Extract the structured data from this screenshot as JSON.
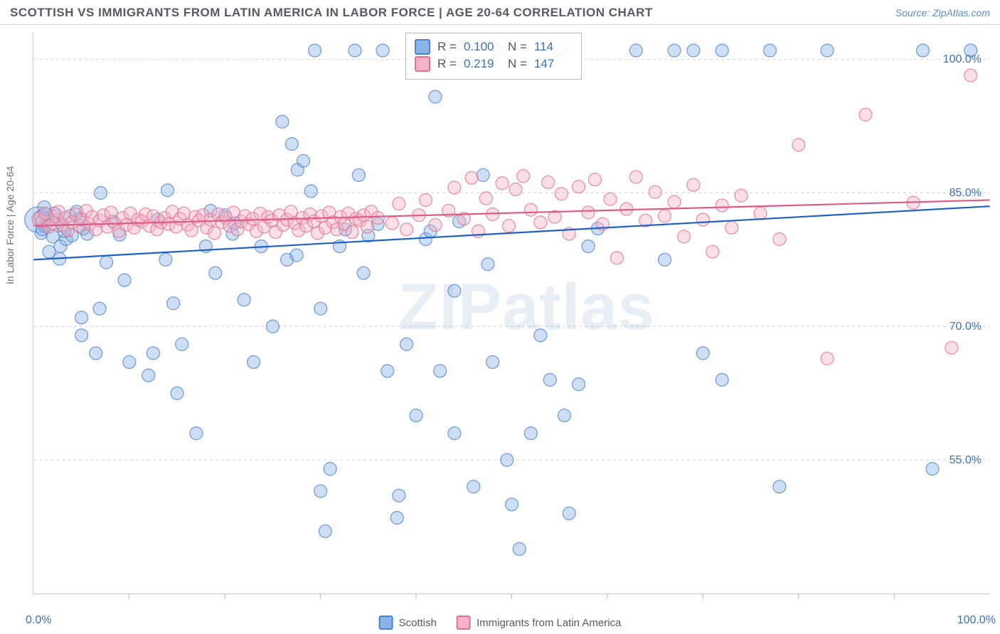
{
  "header": {
    "title": "SCOTTISH VS IMMIGRANTS FROM LATIN AMERICA IN LABOR FORCE | AGE 20-64 CORRELATION CHART",
    "source": "Source: ZipAtlas.com"
  },
  "watermark": "ZIPatlas",
  "chart": {
    "type": "scatter",
    "y_label": "In Labor Force | Age 20-64",
    "background_color": "#ffffff",
    "grid_color": "#d2d2d2",
    "axis_color": "#c9c9c9",
    "tick_color": "#b9b9b9",
    "label_color": "#3e72b6",
    "y_label_color": "#6b7079",
    "xlim": [
      0,
      100
    ],
    "ylim": [
      40,
      103
    ],
    "x_tick_positions": [
      10,
      20,
      30,
      40,
      50,
      60,
      70,
      80,
      90
    ],
    "x_min_label": "0.0%",
    "x_max_label": "100.0%",
    "y_ticks": [
      {
        "v": 55,
        "label": "55.0%"
      },
      {
        "v": 70,
        "label": "70.0%"
      },
      {
        "v": 85,
        "label": "85.0%"
      },
      {
        "v": 100,
        "label": "100.0%"
      }
    ],
    "marker_radius": 9,
    "marker_opacity": 0.42,
    "marker_stroke_opacity": 0.75,
    "trendline_width": 2.2,
    "series": [
      {
        "key": "scottish",
        "name": "Scottish",
        "fill": "#8ab3e6",
        "stroke": "#4c84c9",
        "trend_stroke": "#1f62c6",
        "R": "0.100",
        "N": "114",
        "trendline": {
          "x1": 0,
          "y1": 77.5,
          "x2": 100,
          "y2": 83.5
        },
        "points": [
          [
            0.4,
            82,
            18
          ],
          [
            0.7,
            82.3
          ],
          [
            1.2,
            81.2
          ],
          [
            0.8,
            80.5
          ],
          [
            1.5,
            81.8
          ],
          [
            1.3,
            82.6
          ],
          [
            2,
            80.1
          ],
          [
            2.5,
            82
          ],
          [
            2.8,
            79
          ],
          [
            1.6,
            78.4
          ],
          [
            2.2,
            82.7
          ],
          [
            3,
            81.3
          ],
          [
            3.4,
            79.8
          ],
          [
            3.8,
            82.4
          ],
          [
            4,
            80.2
          ],
          [
            4.5,
            82.9
          ],
          [
            0.9,
            80.9
          ],
          [
            1.1,
            83.4
          ],
          [
            2.7,
            77.6
          ],
          [
            3.2,
            80.7
          ],
          [
            4.8,
            82.1
          ],
          [
            5.2,
            81
          ],
          [
            5.6,
            80.4
          ],
          [
            7,
            85
          ],
          [
            5,
            69
          ],
          [
            5,
            71
          ],
          [
            6.5,
            67
          ],
          [
            6.9,
            72
          ],
          [
            7.6,
            77.2
          ],
          [
            8.3,
            81.8
          ],
          [
            9,
            80.3
          ],
          [
            9.5,
            75.2
          ],
          [
            10,
            66
          ],
          [
            12,
            64.5
          ],
          [
            12.5,
            67
          ],
          [
            13,
            82
          ],
          [
            13.8,
            77.5
          ],
          [
            14,
            85.3
          ],
          [
            14.6,
            72.6
          ],
          [
            15,
            62.5
          ],
          [
            15.5,
            68
          ],
          [
            17,
            58
          ],
          [
            18,
            79
          ],
          [
            18.5,
            83
          ],
          [
            19,
            76
          ],
          [
            20,
            82.5
          ],
          [
            20.8,
            80.4
          ],
          [
            21,
            81.6
          ],
          [
            22,
            73
          ],
          [
            23,
            66
          ],
          [
            23.8,
            79
          ],
          [
            25,
            70
          ],
          [
            26.5,
            77.5
          ],
          [
            27.5,
            78
          ],
          [
            26,
            93
          ],
          [
            27,
            90.5
          ],
          [
            27.6,
            87.6
          ],
          [
            28.2,
            88.6
          ],
          [
            29,
            85.2
          ],
          [
            29.4,
            101
          ],
          [
            30,
            72
          ],
          [
            30,
            51.5
          ],
          [
            30.5,
            47
          ],
          [
            31,
            54
          ],
          [
            32,
            79
          ],
          [
            32.6,
            80.9
          ],
          [
            33.6,
            101
          ],
          [
            34,
            87
          ],
          [
            34.5,
            76
          ],
          [
            35,
            80.2
          ],
          [
            36,
            81.5
          ],
          [
            36.5,
            101
          ],
          [
            37,
            65
          ],
          [
            38,
            48.5
          ],
          [
            38.2,
            51
          ],
          [
            39,
            68
          ],
          [
            40,
            60
          ],
          [
            41,
            79.8
          ],
          [
            41.5,
            80.7
          ],
          [
            42,
            95.8
          ],
          [
            42.5,
            65
          ],
          [
            43,
            101
          ],
          [
            44,
            74
          ],
          [
            44,
            58
          ],
          [
            44.5,
            81.8
          ],
          [
            46,
            52
          ],
          [
            47,
            87
          ],
          [
            47.5,
            77
          ],
          [
            48,
            66
          ],
          [
            48.5,
            101
          ],
          [
            49.5,
            55
          ],
          [
            50,
            50
          ],
          [
            50.8,
            45
          ],
          [
            52,
            58
          ],
          [
            53,
            69
          ],
          [
            54,
            64
          ],
          [
            55,
            101
          ],
          [
            55.5,
            60
          ],
          [
            56,
            49
          ],
          [
            57,
            63.5
          ],
          [
            58,
            79
          ],
          [
            59,
            81
          ],
          [
            63,
            101
          ],
          [
            67,
            101
          ],
          [
            69,
            101
          ],
          [
            72,
            101
          ],
          [
            77,
            101
          ],
          [
            83,
            101
          ],
          [
            93,
            101
          ],
          [
            98,
            101
          ],
          [
            66,
            77.5
          ],
          [
            70,
            67
          ],
          [
            72,
            64
          ],
          [
            78,
            52
          ],
          [
            94,
            54
          ]
        ]
      },
      {
        "key": "latin",
        "name": "Immigrants from Latin America",
        "fill": "#f4b3c6",
        "stroke": "#e3708f",
        "trend_stroke": "#e05a86",
        "R": "0.219",
        "N": "147",
        "trendline": {
          "x1": 0,
          "y1": 81.3,
          "x2": 100,
          "y2": 84.2
        },
        "points": [
          [
            0.5,
            82.1
          ],
          [
            0.9,
            81.8
          ],
          [
            1.2,
            82.7
          ],
          [
            1.6,
            81.2
          ],
          [
            2,
            81.6
          ],
          [
            2.3,
            82.4
          ],
          [
            2.6,
            82.9
          ],
          [
            3,
            81.4
          ],
          [
            3.3,
            82.2
          ],
          [
            3.6,
            80.8
          ],
          [
            4,
            81.7
          ],
          [
            4.4,
            82.6
          ],
          [
            4.8,
            81.3
          ],
          [
            5.1,
            82
          ],
          [
            5.5,
            83
          ],
          [
            5.8,
            81.5
          ],
          [
            6.1,
            82.3
          ],
          [
            6.5,
            80.9
          ],
          [
            6.9,
            81.9
          ],
          [
            7.3,
            82.5
          ],
          [
            7.7,
            81.2
          ],
          [
            8.1,
            82.8
          ],
          [
            8.5,
            81.6
          ],
          [
            8.9,
            80.7
          ],
          [
            9.3,
            82.2
          ],
          [
            9.7,
            81.4
          ],
          [
            10.1,
            82.7
          ],
          [
            10.5,
            81.1
          ],
          [
            10.9,
            82
          ],
          [
            11.3,
            81.8
          ],
          [
            11.7,
            82.6
          ],
          [
            12.1,
            81.3
          ],
          [
            12.5,
            82.4
          ],
          [
            12.9,
            80.9
          ],
          [
            13.3,
            81.7
          ],
          [
            13.7,
            82.2
          ],
          [
            14.1,
            81.5
          ],
          [
            14.5,
            82.9
          ],
          [
            14.9,
            81.2
          ],
          [
            15.3,
            82.1
          ],
          [
            15.7,
            82.7
          ],
          [
            16.1,
            81.4
          ],
          [
            16.5,
            80.8
          ],
          [
            16.9,
            82.3
          ],
          [
            17.3,
            81.9
          ],
          [
            17.7,
            82.5
          ],
          [
            18.1,
            81.1
          ],
          [
            18.5,
            82
          ],
          [
            18.9,
            80.5
          ],
          [
            19.3,
            82.6
          ],
          [
            19.7,
            81.7
          ],
          [
            20.1,
            82.2
          ],
          [
            20.5,
            81.3
          ],
          [
            20.9,
            82.8
          ],
          [
            21.3,
            80.9
          ],
          [
            21.7,
            81.8
          ],
          [
            22.1,
            82.4
          ],
          [
            22.5,
            81.5
          ],
          [
            22.9,
            82.1
          ],
          [
            23.3,
            80.7
          ],
          [
            23.7,
            82.7
          ],
          [
            24.1,
            81.2
          ],
          [
            24.5,
            82.3
          ],
          [
            24.9,
            81.9
          ],
          [
            25.3,
            80.6
          ],
          [
            25.7,
            82.5
          ],
          [
            26.1,
            81.4
          ],
          [
            26.5,
            82
          ],
          [
            26.9,
            82.9
          ],
          [
            27.3,
            81.6
          ],
          [
            27.7,
            80.8
          ],
          [
            28.1,
            82.2
          ],
          [
            28.5,
            81.3
          ],
          [
            28.9,
            82.6
          ],
          [
            29.3,
            81.8
          ],
          [
            29.7,
            80.5
          ],
          [
            30.1,
            82.4
          ],
          [
            30.5,
            81.1
          ],
          [
            30.9,
            82.8
          ],
          [
            31.3,
            81.7
          ],
          [
            31.7,
            80.9
          ],
          [
            32.1,
            82.3
          ],
          [
            32.5,
            81.5
          ],
          [
            32.9,
            82.7
          ],
          [
            33.3,
            80.6
          ],
          [
            33.7,
            82.1
          ],
          [
            34.1,
            81.9
          ],
          [
            34.5,
            82.5
          ],
          [
            34.9,
            81.2
          ],
          [
            35.3,
            82.9
          ],
          [
            36,
            82.2
          ],
          [
            37.5,
            81.6
          ],
          [
            38.2,
            83.8
          ],
          [
            39,
            80.9
          ],
          [
            40.3,
            82.5
          ],
          [
            41,
            84.2
          ],
          [
            42,
            81.4
          ],
          [
            43.4,
            83
          ],
          [
            44,
            85.6
          ],
          [
            45,
            82.1
          ],
          [
            45.8,
            86.7
          ],
          [
            46.5,
            80.7
          ],
          [
            47.3,
            84.4
          ],
          [
            48,
            82.6
          ],
          [
            49,
            86.1
          ],
          [
            49.7,
            81.3
          ],
          [
            50.4,
            85.4
          ],
          [
            51.2,
            86.9
          ],
          [
            52,
            83.1
          ],
          [
            53,
            81.7
          ],
          [
            53.8,
            86.2
          ],
          [
            54.5,
            82.3
          ],
          [
            55.2,
            84.9
          ],
          [
            56,
            80.4
          ],
          [
            57,
            85.7
          ],
          [
            58,
            82.8
          ],
          [
            58.7,
            86.5
          ],
          [
            59.5,
            81.5
          ],
          [
            60.3,
            84.3
          ],
          [
            61,
            77.7
          ],
          [
            62,
            83.2
          ],
          [
            63,
            86.8
          ],
          [
            64,
            81.9
          ],
          [
            65,
            85.1
          ],
          [
            66,
            82.4
          ],
          [
            67,
            84
          ],
          [
            68,
            80.1
          ],
          [
            69,
            85.9
          ],
          [
            70,
            82
          ],
          [
            71,
            78.4
          ],
          [
            72,
            83.6
          ],
          [
            73,
            81.1
          ],
          [
            74,
            84.7
          ],
          [
            76,
            82.7
          ],
          [
            78,
            79.8
          ],
          [
            80,
            90.4
          ],
          [
            83,
            66.4
          ],
          [
            87,
            93.8
          ],
          [
            92,
            83.9
          ],
          [
            96,
            67.6
          ],
          [
            98,
            98.2
          ]
        ]
      }
    ]
  },
  "stats_box": {
    "r_label": "R =",
    "n_label": "N ="
  },
  "legend": {
    "items": [
      "Scottish",
      "Immigrants from Latin America"
    ]
  }
}
